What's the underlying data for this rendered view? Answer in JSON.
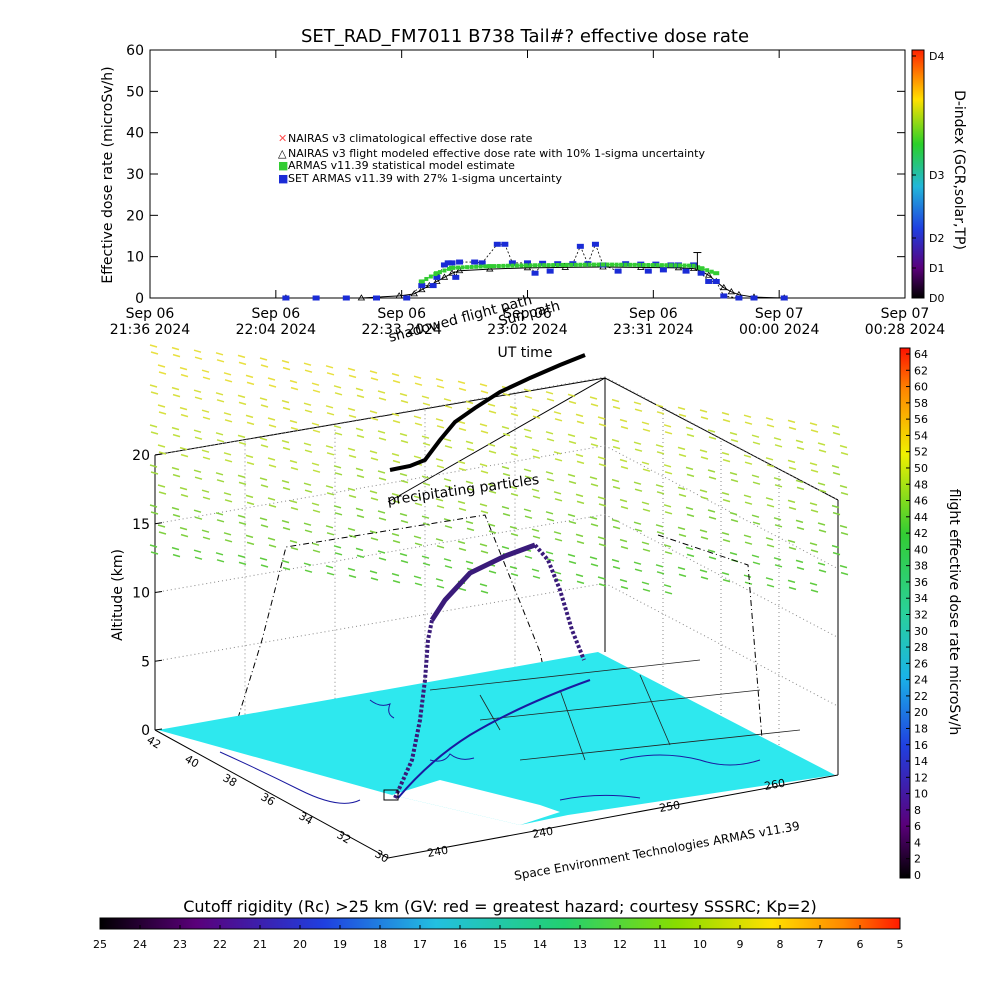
{
  "title": "SET_RAD_FM7011  B738 Tail#? effective dose rate",
  "chart_data": [
    {
      "type": "line",
      "ylabel": "Effective dose rate (microSv/h)",
      "xlabel": "UT time",
      "ylim": [
        0,
        60
      ],
      "yticks": [
        "0",
        "10",
        "20",
        "30",
        "40",
        "50",
        "60"
      ],
      "xticks": [
        {
          "day": "Sep 06",
          "time": "21:36 2024"
        },
        {
          "day": "Sep 06",
          "time": "22:04 2024"
        },
        {
          "day": "Sep 06",
          "time": "22:33 2024"
        },
        {
          "day": "Sep 06",
          "time": "23:02 2024"
        },
        {
          "day": "Sep 06",
          "time": "23:31 2024"
        },
        {
          "day": "Sep 07",
          "time": "00:00 2024"
        },
        {
          "day": "Sep 07",
          "time": "00:28 2024"
        }
      ],
      "legend_placement": "center-left",
      "legend": [
        {
          "label": "NAIRAS v3 climatological effective dose rate",
          "color": "#ff5050"
        },
        {
          "label": "NAIRAS v3 flight modeled effective dose rate with 10% 1-sigma uncertainty",
          "color": "#000000"
        },
        {
          "label": "ARMAS v11.39 statistical model estimate",
          "color": "#33cc33"
        },
        {
          "label": "SET ARMAS v11.39 with 27% 1-sigma uncertainty",
          "color": "#1a2bd6"
        }
      ],
      "right_axis": {
        "label": "D-index (GCR,solar,TP)",
        "ticks": [
          "D0",
          "D1",
          "D2",
          "D3",
          "D4"
        ]
      },
      "series": [
        {
          "name": "NAIRAS v3 flight modeled effective dose rate with 10% 1-sigma uncertainty",
          "color": "#000000",
          "points": [
            [
              0.18,
              0
            ],
            [
              0.28,
              0
            ],
            [
              0.33,
              0.5
            ],
            [
              0.35,
              1
            ],
            [
              0.36,
              2
            ],
            [
              0.37,
              3
            ],
            [
              0.38,
              4
            ],
            [
              0.39,
              5
            ],
            [
              0.4,
              6
            ],
            [
              0.41,
              6.6
            ],
            [
              0.45,
              7
            ],
            [
              0.5,
              7.3
            ],
            [
              0.55,
              7.4
            ],
            [
              0.6,
              7.5
            ],
            [
              0.65,
              7.4
            ],
            [
              0.7,
              7.3
            ],
            [
              0.72,
              7.1
            ],
            [
              0.73,
              6.5
            ],
            [
              0.74,
              5.5
            ],
            [
              0.75,
              4
            ],
            [
              0.76,
              2.5
            ],
            [
              0.77,
              1.5
            ],
            [
              0.78,
              0.8
            ],
            [
              0.8,
              0.2
            ],
            [
              0.84,
              0
            ]
          ]
        },
        {
          "name": "ARMAS v11.39 statistical model estimate",
          "color": "#33cc33",
          "points": [
            [
              0.36,
              4
            ],
            [
              0.38,
              6
            ],
            [
              0.4,
              7.3
            ],
            [
              0.45,
              7.7
            ],
            [
              0.5,
              7.9
            ],
            [
              0.55,
              8.0
            ],
            [
              0.6,
              8.1
            ],
            [
              0.65,
              8.0
            ],
            [
              0.7,
              7.9
            ],
            [
              0.72,
              7.8
            ],
            [
              0.73,
              7.2
            ],
            [
              0.75,
              6.0
            ]
          ]
        },
        {
          "name": "SET ARMAS v11.39 with 27% 1-sigma uncertainty",
          "color": "#1a2bd6",
          "points": [
            [
              0.18,
              0
            ],
            [
              0.22,
              0
            ],
            [
              0.26,
              0
            ],
            [
              0.3,
              0
            ],
            [
              0.34,
              0
            ],
            [
              0.36,
              3
            ],
            [
              0.375,
              3
            ],
            [
              0.38,
              5
            ],
            [
              0.39,
              8
            ],
            [
              0.395,
              8.5
            ],
            [
              0.4,
              8.5
            ],
            [
              0.405,
              5
            ],
            [
              0.41,
              8.7
            ],
            [
              0.43,
              8.7
            ],
            [
              0.44,
              8.5
            ],
            [
              0.46,
              13
            ],
            [
              0.47,
              13
            ],
            [
              0.48,
              8.5
            ],
            [
              0.5,
              8.5
            ],
            [
              0.51,
              6
            ],
            [
              0.52,
              8.4
            ],
            [
              0.53,
              6.5
            ],
            [
              0.54,
              8.3
            ],
            [
              0.56,
              8.3
            ],
            [
              0.57,
              12.5
            ],
            [
              0.58,
              8.3
            ],
            [
              0.59,
              13
            ],
            [
              0.6,
              8
            ],
            [
              0.62,
              6.5
            ],
            [
              0.63,
              8.3
            ],
            [
              0.65,
              8.2
            ],
            [
              0.66,
              6.5
            ],
            [
              0.67,
              8.2
            ],
            [
              0.68,
              6.8
            ],
            [
              0.69,
              8
            ],
            [
              0.7,
              8
            ],
            [
              0.71,
              6.5
            ],
            [
              0.72,
              8
            ],
            [
              0.73,
              6
            ],
            [
              0.74,
              4
            ],
            [
              0.75,
              4
            ],
            [
              0.76,
              0.5
            ],
            [
              0.78,
              0
            ],
            [
              0.8,
              0
            ],
            [
              0.84,
              0
            ]
          ]
        }
      ]
    },
    {
      "type": "scatter",
      "ylabel": "Altitude (km)",
      "ylim": [
        0,
        20
      ],
      "yticks": [
        "0",
        "5",
        "10",
        "15",
        "20"
      ],
      "lat_ticks": [
        "42",
        "40",
        "38",
        "36",
        "34",
        "32",
        "30"
      ],
      "lon_ticks": [
        "240",
        "240",
        "250",
        "260"
      ],
      "annotations": [
        "precipitating particles",
        "shadowed flight path",
        "Sun path"
      ],
      "credit": "Space Environment Technologies ARMAS v11.39",
      "colorbar": {
        "label": "flight effective dose rate microSv/h",
        "ticks": [
          "0",
          "2",
          "4",
          "6",
          "8",
          "10",
          "12",
          "14",
          "16",
          "18",
          "20",
          "22",
          "24",
          "26",
          "28",
          "30",
          "32",
          "34",
          "36",
          "38",
          "40",
          "42",
          "44",
          "46",
          "48",
          "50",
          "52",
          "54",
          "56",
          "58",
          "60",
          "62",
          "64"
        ]
      }
    },
    {
      "type": "heatmap",
      "label": "Cutoff rigidity (Rc) >25 km (GV: red = greatest hazard; courtesy SSSRC; Kp=2)",
      "ticks": [
        "25",
        "24",
        "23",
        "22",
        "21",
        "20",
        "19",
        "18",
        "17",
        "16",
        "15",
        "14",
        "13",
        "12",
        "11",
        "10",
        "9",
        "8",
        "7",
        "6",
        "5"
      ]
    }
  ]
}
